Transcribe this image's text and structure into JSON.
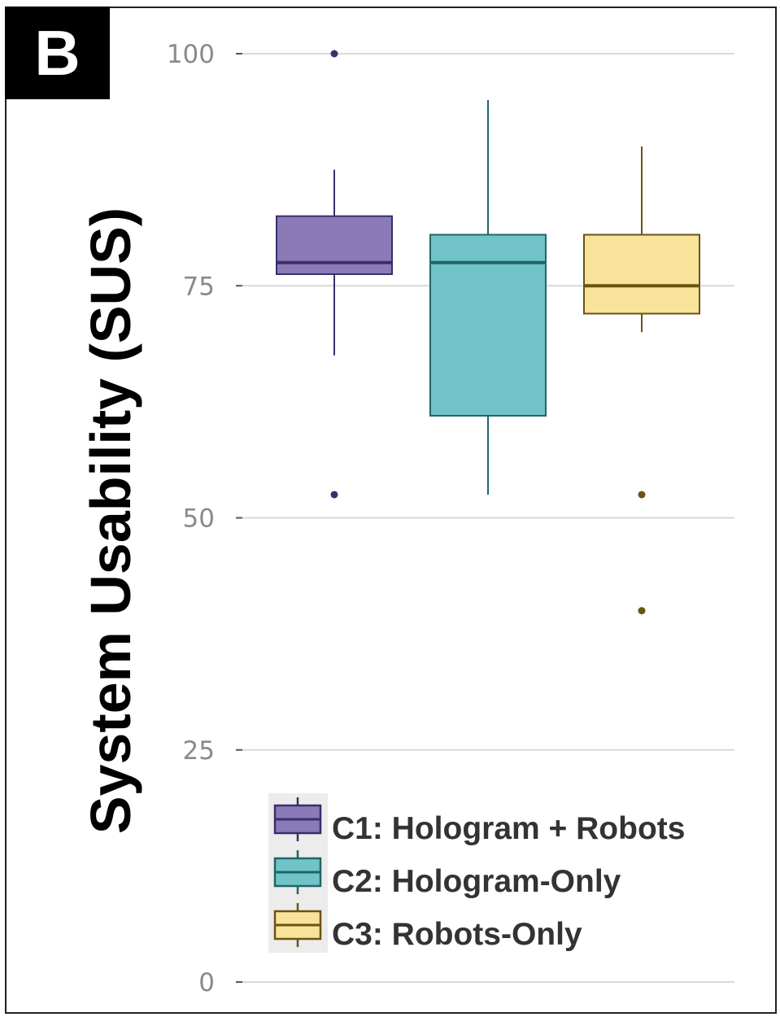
{
  "panel_label": "B",
  "chart_data": {
    "type": "box",
    "ylabel": "System Usability (SUS)",
    "xlabel": "",
    "ylim": [
      0,
      100
    ],
    "yticks": [
      0,
      25,
      50,
      75,
      100
    ],
    "grid": true,
    "legend_position": "bottom-left",
    "series": [
      {
        "name": "C1: Hologram + Robots",
        "fill": "#8b7ab8",
        "stroke": "#3b2e6b",
        "whisker_low": 67.5,
        "q1": 76.25,
        "median": 77.5,
        "q3": 82.5,
        "whisker_high": 87.5,
        "outliers": [
          100,
          52.5
        ]
      },
      {
        "name": "C2: Hologram-Only",
        "fill": "#70c4c8",
        "stroke": "#1f6668",
        "whisker_low": 52.5,
        "q1": 61,
        "median": 77.5,
        "q3": 80.5,
        "whisker_high": 95,
        "outliers": []
      },
      {
        "name": "C3: Robots-Only",
        "fill": "#f7e39a",
        "stroke": "#6b5312",
        "whisker_low": 70,
        "q1": 72,
        "median": 75,
        "q3": 80.5,
        "whisker_high": 90,
        "outliers": [
          52.5,
          40
        ]
      }
    ]
  }
}
